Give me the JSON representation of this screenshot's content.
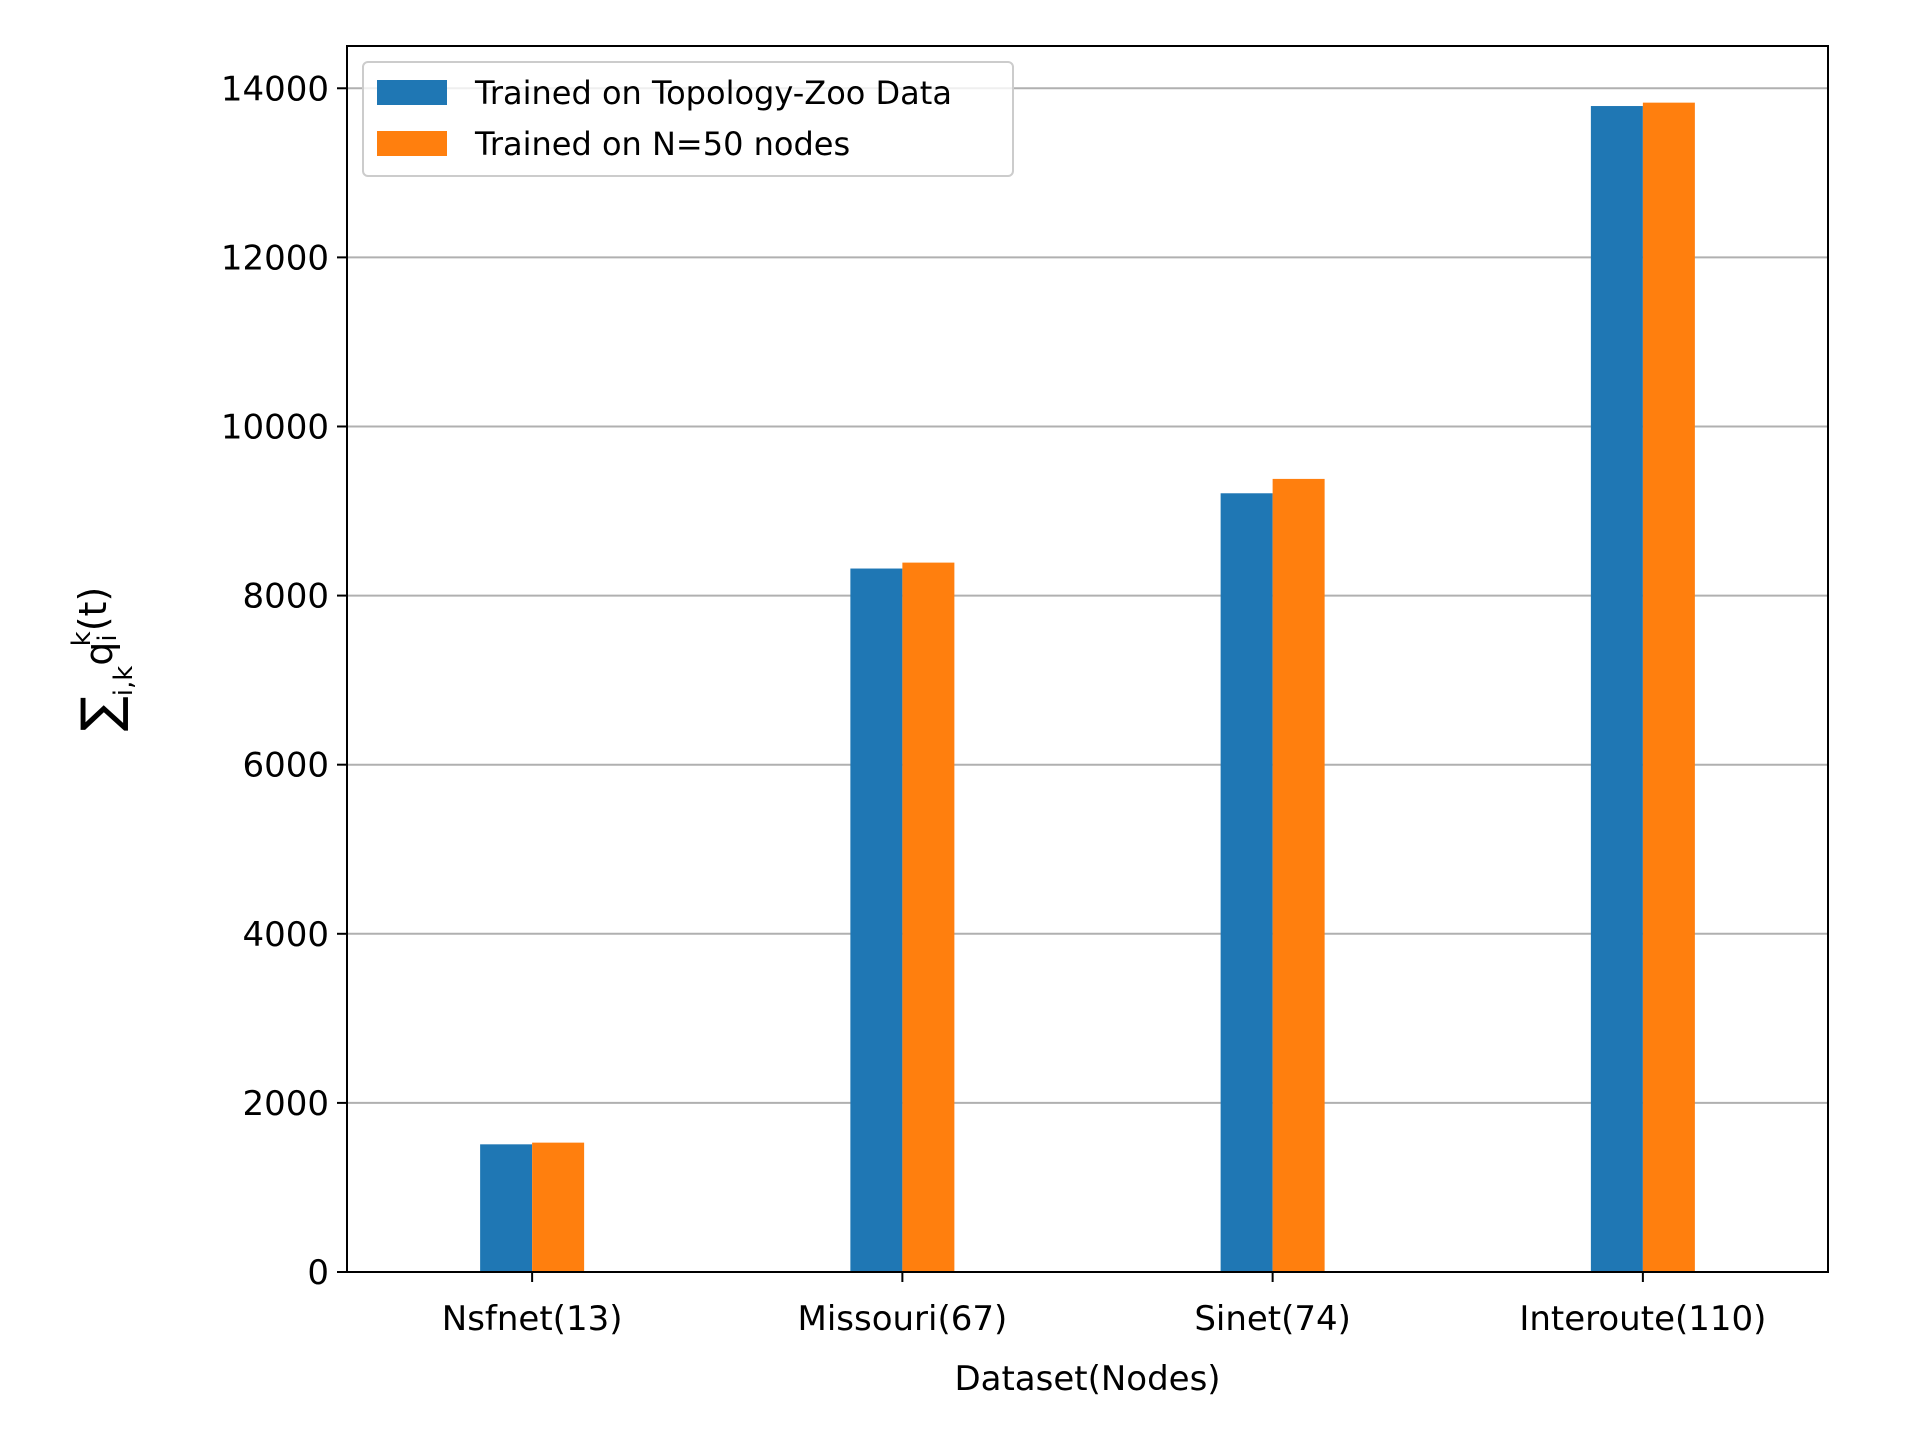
{
  "chart_data": {
    "type": "bar",
    "title": "",
    "xlabel": "Dataset(Nodes)",
    "ylabel": "∑i,k qik(t)",
    "ylabel_parts": {
      "sum": "∑",
      "sum_sub": "i,k",
      "var": "q",
      "var_sup": "k",
      "var_sub": "i",
      "arg": "(t)"
    },
    "categories": [
      "Nsfnet(13)",
      "Missouri(67)",
      "Sinet(74)",
      "Interoute(110)"
    ],
    "series": [
      {
        "name": "Trained on Topology-Zoo Data",
        "color": "#1f77b4",
        "values": [
          1510,
          8320,
          9210,
          13790
        ]
      },
      {
        "name": "Trained on N=50 nodes",
        "color": "#ff7f0e",
        "values": [
          1530,
          8390,
          9380,
          13830
        ]
      }
    ],
    "ylim": [
      0,
      14500
    ],
    "yticks": [
      0,
      2000,
      4000,
      6000,
      8000,
      10000,
      12000,
      14000
    ],
    "grid": "y",
    "legend_position": "top-left"
  }
}
